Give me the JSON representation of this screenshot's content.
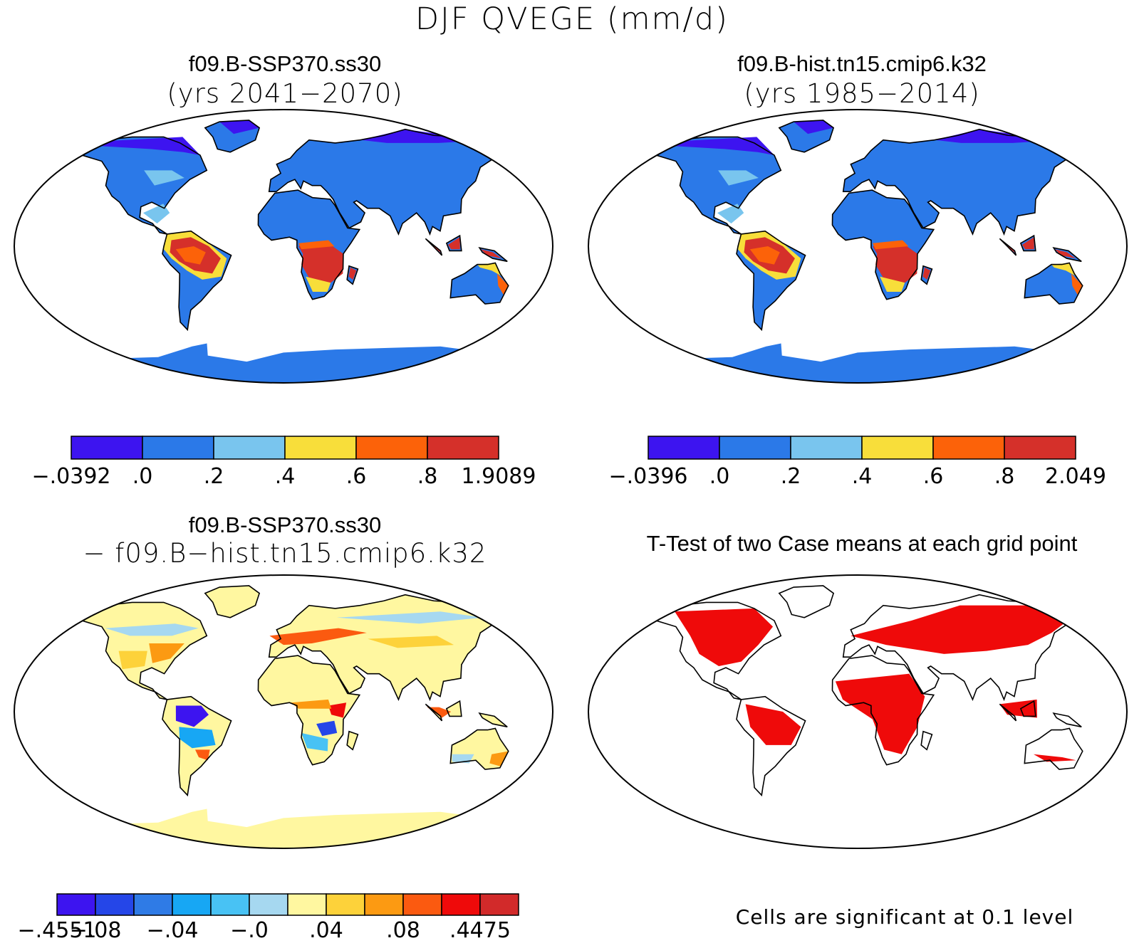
{
  "title": "DJF QVEGE (mm/d)",
  "panels": [
    {
      "id": "case1",
      "title": "f09.B-SSP370.ss30",
      "subtitle": "(yrs 2041−2070)",
      "palette": [
        "#3d14f0",
        "#2b79e8",
        "#79c5ee",
        "#f8de3a",
        "#fc6209",
        "#d5302a"
      ],
      "colorbar_labels": [
        "−.0392",
        ".0",
        ".2",
        ".4",
        ".6",
        ".8",
        "1.9089"
      ]
    },
    {
      "id": "case2",
      "title": "f09.B-hist.tn15.cmip6.k32",
      "subtitle": "(yrs 1985−2014)",
      "palette": [
        "#3d14f0",
        "#2b79e8",
        "#79c5ee",
        "#f8de3a",
        "#fc6209",
        "#d5302a"
      ],
      "colorbar_labels": [
        "−.0396",
        ".0",
        ".2",
        ".4",
        ".6",
        ".8",
        "2.049"
      ]
    },
    {
      "id": "diff",
      "title": "f09.B-SSP370.ss30",
      "subtitle": "− f09.B−hist.tn15.cmip6.k32",
      "palette": [
        "#3d14f0",
        "#2546e8",
        "#2f7be6",
        "#17a7f4",
        "#48c2f4",
        "#a6d8f0",
        "#fff7a0",
        "#fdd23a",
        "#fc9a12",
        "#fb5a10",
        "#ef0a0a",
        "#d22a2a"
      ],
      "colorbar_labels": [
        "−.4551",
        "−.08",
        "",
        "−.04",
        "",
        "−.0",
        "",
        ".04",
        "",
        ".08",
        "",
        ".4475"
      ]
    },
    {
      "id": "ttest",
      "title": "T-Test of two Case means at each grid point",
      "note": "Cells are significant at 0.1 level",
      "signif_color": "#ef0a0a"
    }
  ]
}
